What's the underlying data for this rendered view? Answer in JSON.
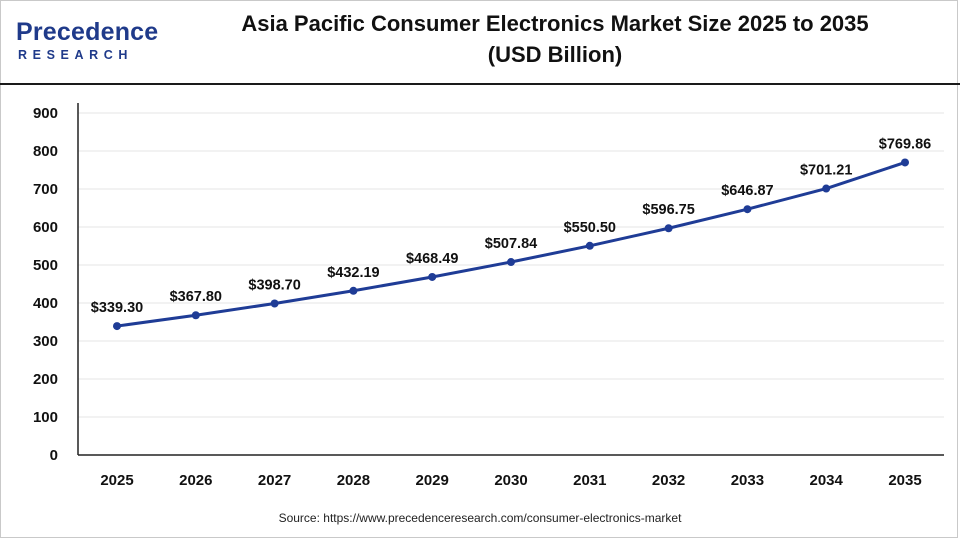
{
  "logo": {
    "name": "Precedence",
    "tagline": "RESEARCH"
  },
  "title": {
    "line1": "Asia Pacific Consumer Electronics Market Size 2025 to 2035",
    "line2": "(USD Billion)"
  },
  "source": "Source: https://www.precedenceresearch.com/consumer-electronics-market",
  "colors": {
    "line": "#1f3c96",
    "grid": "#e6e6e6",
    "axis": "#222222",
    "logo": "#1f3a8a"
  },
  "chart_data": {
    "type": "line",
    "title": "Asia Pacific Consumer Electronics Market Size 2025 to 2035 (USD Billion)",
    "xlabel": "",
    "ylabel": "",
    "categories": [
      "2025",
      "2026",
      "2027",
      "2028",
      "2029",
      "2030",
      "2031",
      "2032",
      "2033",
      "2034",
      "2035"
    ],
    "series": [
      {
        "values": [
          339.3,
          367.8,
          398.7,
          432.19,
          468.49,
          507.84,
          550.5,
          596.75,
          646.87,
          701.21,
          769.86
        ],
        "labels": [
          "$339.30",
          "$367.80",
          "$398.70",
          "$432.19",
          "$468.49",
          "$507.84",
          "$550.50",
          "$596.75",
          "$646.87",
          "$701.21",
          "$769.86"
        ]
      }
    ],
    "ylim": [
      0,
      900
    ],
    "yticks": [
      "0",
      "100",
      "200",
      "300",
      "400",
      "500",
      "600",
      "700",
      "800",
      "900"
    ],
    "grid": true,
    "legend": "none"
  }
}
